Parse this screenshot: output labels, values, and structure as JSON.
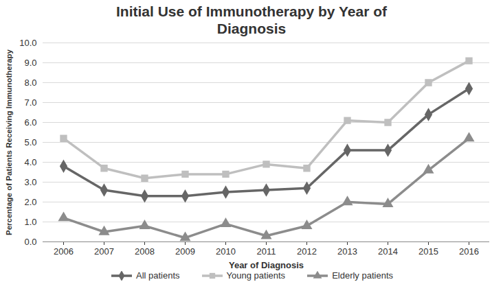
{
  "chart_data": {
    "type": "line",
    "title": "Initial Use of Immunotherapy by Year of Diagnosis",
    "x_label": "Year of Diagnosis",
    "y_label": "Percentage of Patients Receiving Immunotherapy",
    "categories": [
      "2006",
      "2007",
      "2008",
      "2009",
      "2010",
      "2011",
      "2012",
      "2013",
      "2014",
      "2015",
      "2016"
    ],
    "series": [
      {
        "name": "All patients",
        "color": "#666666",
        "marker": "diamond",
        "values": [
          3.8,
          2.6,
          2.3,
          2.3,
          2.5,
          2.6,
          2.7,
          4.6,
          4.6,
          6.4,
          7.7
        ]
      },
      {
        "name": "Young patients",
        "color": "#bfbfbf",
        "marker": "square",
        "values": [
          5.2,
          3.7,
          3.2,
          3.4,
          3.4,
          3.9,
          3.7,
          6.1,
          6.0,
          8.0,
          9.1
        ]
      },
      {
        "name": "Elderly patients",
        "color": "#8c8c8c",
        "marker": "triangle",
        "values": [
          1.2,
          0.5,
          0.8,
          0.2,
          0.9,
          0.3,
          0.8,
          2.0,
          1.9,
          3.6,
          5.2
        ]
      }
    ],
    "ylim": [
      0,
      10
    ],
    "yticks": [
      {
        "value": 0,
        "label": "0.0"
      },
      {
        "value": 1,
        "label": "1.0"
      },
      {
        "value": 2,
        "label": "2.0"
      },
      {
        "value": 3,
        "label": "3.0"
      },
      {
        "value": 4,
        "label": "4.0"
      },
      {
        "value": 5,
        "label": "5.0"
      },
      {
        "value": 6,
        "label": "6.0"
      },
      {
        "value": 7,
        "label": "7.0"
      },
      {
        "value": 8,
        "label": "8.0"
      },
      {
        "value": 9,
        "label": "9.0"
      },
      {
        "value": 10,
        "label": "10.0"
      }
    ],
    "grid": true,
    "legend": "bottom"
  }
}
